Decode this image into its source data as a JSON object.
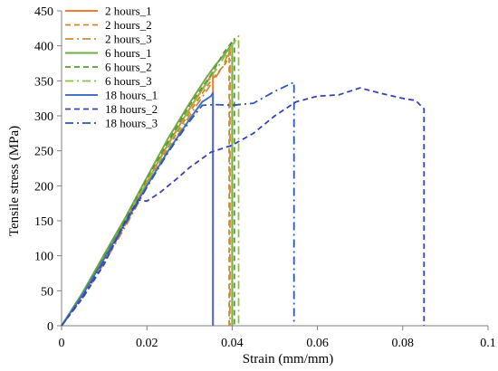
{
  "chart_data": {
    "type": "line",
    "title": "",
    "xlabel": "Strain (mm/mm)",
    "ylabel": "Tensile stress  (MPa)",
    "xlim": [
      0,
      0.1
    ],
    "ylim": [
      0,
      450
    ],
    "x_ticks": [
      "0",
      "0.02",
      "0.04",
      "0.06",
      "0.08",
      "0.1"
    ],
    "y_ticks": [
      "0",
      "50",
      "100",
      "150",
      "200",
      "250",
      "300",
      "350",
      "400",
      "450"
    ],
    "grid": false,
    "legend_position": "top-left",
    "series": [
      {
        "name": "2 hours_1",
        "color": "#ED7D31",
        "dash": "solid",
        "width": 2,
        "points": [
          [
            0,
            0
          ],
          [
            0.005,
            45
          ],
          [
            0.01,
            98
          ],
          [
            0.015,
            150
          ],
          [
            0.02,
            205
          ],
          [
            0.025,
            260
          ],
          [
            0.03,
            310
          ],
          [
            0.0345,
            352
          ],
          [
            0.0355,
            362
          ],
          [
            0.0355,
            0
          ]
        ]
      },
      {
        "name": "2 hours_2",
        "color": "#C58B2E",
        "dash": "dashed",
        "width": 1.8,
        "points": [
          [
            0,
            0
          ],
          [
            0.005,
            42
          ],
          [
            0.01,
            92
          ],
          [
            0.015,
            145
          ],
          [
            0.02,
            200
          ],
          [
            0.025,
            255
          ],
          [
            0.03,
            305
          ],
          [
            0.035,
            350
          ],
          [
            0.0385,
            375
          ],
          [
            0.0393,
            390
          ],
          [
            0.0393,
            0
          ]
        ]
      },
      {
        "name": "2 hours_3",
        "color": "#D08A3A",
        "dash": "dashdot",
        "width": 1.8,
        "points": [
          [
            0,
            0
          ],
          [
            0.005,
            40
          ],
          [
            0.01,
            90
          ],
          [
            0.015,
            142
          ],
          [
            0.02,
            198
          ],
          [
            0.025,
            250
          ],
          [
            0.03,
            300
          ],
          [
            0.035,
            345
          ],
          [
            0.038,
            372
          ],
          [
            0.0395,
            398
          ],
          [
            0.0395,
            0
          ]
        ]
      },
      {
        "name": "6 hours_1",
        "color": "#70AD47",
        "dash": "solid",
        "width": 2,
        "points": [
          [
            0,
            0
          ],
          [
            0.005,
            48
          ],
          [
            0.01,
            102
          ],
          [
            0.015,
            155
          ],
          [
            0.02,
            212
          ],
          [
            0.025,
            268
          ],
          [
            0.03,
            318
          ],
          [
            0.034,
            355
          ],
          [
            0.036,
            372
          ],
          [
            0.0385,
            390
          ],
          [
            0.04,
            403
          ],
          [
            0.04,
            0
          ]
        ]
      },
      {
        "name": "6 hours_2",
        "color": "#5B9B32",
        "dash": "dashed",
        "width": 1.8,
        "points": [
          [
            0,
            0
          ],
          [
            0.005,
            46
          ],
          [
            0.01,
            100
          ],
          [
            0.015,
            153
          ],
          [
            0.02,
            210
          ],
          [
            0.025,
            263
          ],
          [
            0.03,
            315
          ],
          [
            0.035,
            358
          ],
          [
            0.038,
            390
          ],
          [
            0.0405,
            410
          ],
          [
            0.0405,
            0
          ]
        ]
      },
      {
        "name": "6 hours_3",
        "color": "#8CC04A",
        "dash": "dashdot",
        "width": 1.8,
        "points": [
          [
            0,
            0
          ],
          [
            0.005,
            44
          ],
          [
            0.01,
            95
          ],
          [
            0.015,
            150
          ],
          [
            0.02,
            205
          ],
          [
            0.025,
            258
          ],
          [
            0.03,
            310
          ],
          [
            0.035,
            355
          ],
          [
            0.039,
            392
          ],
          [
            0.0415,
            414
          ],
          [
            0.0415,
            0
          ]
        ]
      },
      {
        "name": "18 hours_1",
        "color": "#4472C4",
        "dash": "solid",
        "width": 2,
        "points": [
          [
            0,
            0
          ],
          [
            0.005,
            45
          ],
          [
            0.01,
            96
          ],
          [
            0.015,
            148
          ],
          [
            0.02,
            200
          ],
          [
            0.025,
            250
          ],
          [
            0.03,
            295
          ],
          [
            0.033,
            320
          ],
          [
            0.035,
            328
          ],
          [
            0.0355,
            333
          ],
          [
            0.0355,
            0
          ]
        ]
      },
      {
        "name": "18 hours_2",
        "color": "#3A42B8",
        "dash": "dashed",
        "width": 1.8,
        "points": [
          [
            0,
            0
          ],
          [
            0.005,
            40
          ],
          [
            0.01,
            88
          ],
          [
            0.015,
            150
          ],
          [
            0.018,
            180
          ],
          [
            0.02,
            178
          ],
          [
            0.023,
            190
          ],
          [
            0.027,
            210
          ],
          [
            0.03,
            226
          ],
          [
            0.035,
            248
          ],
          [
            0.04,
            258
          ],
          [
            0.045,
            275
          ],
          [
            0.05,
            300
          ],
          [
            0.055,
            320
          ],
          [
            0.06,
            328
          ],
          [
            0.065,
            330
          ],
          [
            0.07,
            340
          ],
          [
            0.075,
            332
          ],
          [
            0.08,
            325
          ],
          [
            0.083,
            322
          ],
          [
            0.085,
            310
          ],
          [
            0.085,
            0
          ]
        ]
      },
      {
        "name": "18 hours_3",
        "color": "#2F55B8",
        "dash": "dashdot",
        "width": 1.8,
        "points": [
          [
            0,
            0
          ],
          [
            0.005,
            42
          ],
          [
            0.01,
            93
          ],
          [
            0.015,
            146
          ],
          [
            0.02,
            198
          ],
          [
            0.025,
            248
          ],
          [
            0.03,
            292
          ],
          [
            0.033,
            315
          ],
          [
            0.036,
            316
          ],
          [
            0.04,
            315
          ],
          [
            0.045,
            318
          ],
          [
            0.05,
            335
          ],
          [
            0.0545,
            348
          ],
          [
            0.0545,
            0
          ]
        ]
      }
    ]
  }
}
